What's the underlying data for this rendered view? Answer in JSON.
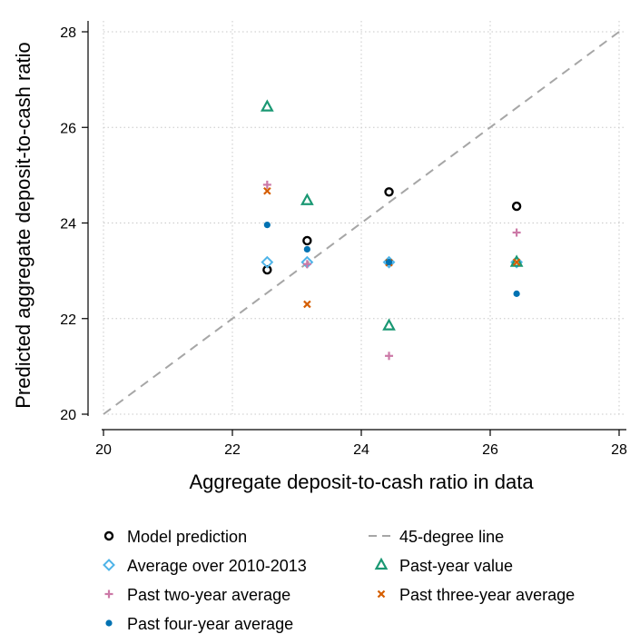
{
  "chart_data": {
    "type": "scatter",
    "xlabel": "Aggregate deposit-to-cash ratio in data",
    "ylabel": "Predicted aggregate deposit-to-cash ratio",
    "xlim": [
      20,
      28
    ],
    "ylim": [
      20,
      28
    ],
    "xticks": [
      "20",
      "22",
      "24",
      "26",
      "28"
    ],
    "yticks": [
      "20",
      "22",
      "24",
      "26",
      "28"
    ],
    "grid": true,
    "legend_placement": "bottom",
    "reference_line": {
      "name": "45-degree line",
      "x": [
        20,
        28
      ],
      "y": [
        20,
        28
      ],
      "color": "#a6a6a6",
      "style": "dashed"
    },
    "series": [
      {
        "name": "Model prediction",
        "marker": "hollow-circle",
        "color": "#000000",
        "x": [
          22.54,
          23.16,
          24.43,
          26.41
        ],
        "y": [
          23.02,
          23.63,
          24.65,
          24.35
        ]
      },
      {
        "name": "Average over 2010-2013",
        "marker": "hollow-diamond",
        "color": "#4fb4e8",
        "x": [
          22.54,
          23.16,
          24.43,
          26.41
        ],
        "y": [
          23.18,
          23.18,
          23.18,
          23.18
        ]
      },
      {
        "name": "Past-year value",
        "marker": "hollow-triangle",
        "color": "#1a9873",
        "x": [
          22.54,
          23.16,
          24.43,
          26.41
        ],
        "y": [
          26.43,
          24.47,
          21.85,
          23.18
        ]
      },
      {
        "name": "Past two-year average",
        "marker": "plus",
        "color": "#cc79a7",
        "x": [
          22.54,
          23.16,
          24.43,
          26.41
        ],
        "y": [
          24.8,
          23.14,
          21.22,
          23.8
        ]
      },
      {
        "name": "Past three-year average",
        "marker": "x",
        "color": "#d55e00",
        "x": [
          22.54,
          23.16,
          24.43,
          26.41
        ],
        "y": [
          24.67,
          22.3,
          23.17,
          23.18
        ]
      },
      {
        "name": "Past four-year average",
        "marker": "filled-circle",
        "color": "#0072b2",
        "x": [
          22.54,
          23.16,
          24.43,
          26.41
        ],
        "y": [
          23.96,
          23.45,
          23.18,
          22.52
        ]
      }
    ]
  },
  "legend": {
    "items": [
      {
        "label": "Model prediction",
        "marker": "hollow-circle",
        "color": "#000000"
      },
      {
        "label": "45-degree line",
        "marker": "dash-line",
        "color": "#a6a6a6"
      },
      {
        "label": "Average over 2010-2013",
        "marker": "hollow-diamond",
        "color": "#4fb4e8"
      },
      {
        "label": "Past-year value",
        "marker": "hollow-triangle",
        "color": "#1a9873"
      },
      {
        "label": "Past two-year average",
        "marker": "plus",
        "color": "#cc79a7"
      },
      {
        "label": "Past three-year average",
        "marker": "x",
        "color": "#d55e00"
      },
      {
        "label": "Past four-year average",
        "marker": "filled-circle",
        "color": "#0072b2"
      }
    ]
  }
}
